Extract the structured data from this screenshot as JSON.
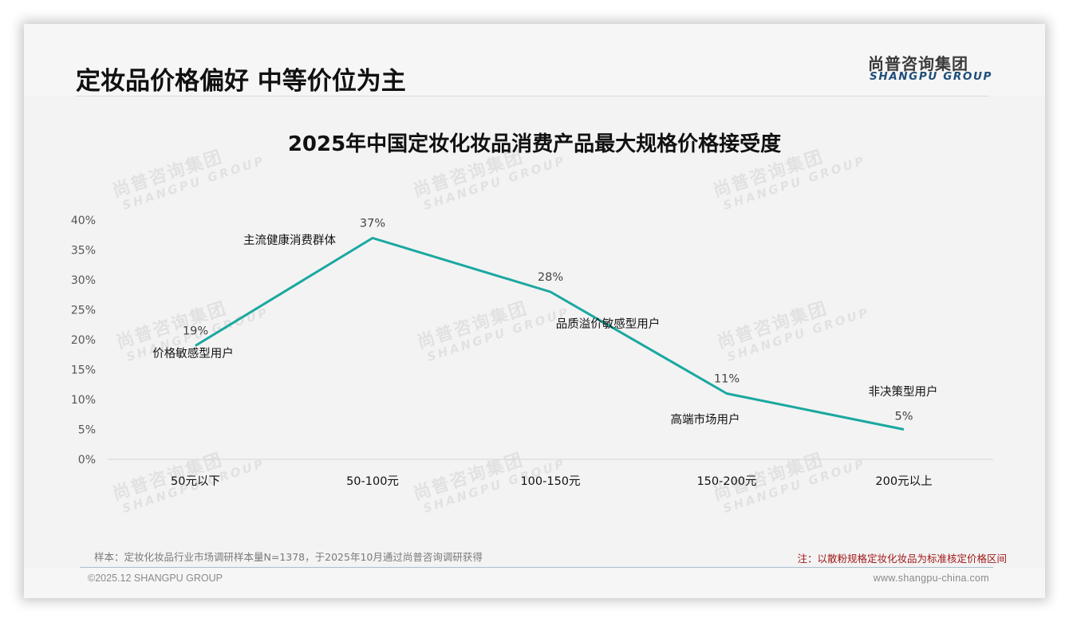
{
  "header": {
    "title": "定妆品价格偏好 中等价位为主",
    "logo_cn": "尚普咨询集团",
    "logo_en": "SHANGPU GROUP"
  },
  "watermark": {
    "cn": "尚普咨询集团",
    "en": "SHANGPU GROUP"
  },
  "chart_data": {
    "type": "line",
    "title": "2025年中国定妆化妆品消费产品最大规格价格接受度",
    "xlabel": "",
    "ylabel": "",
    "categories": [
      "50元以下",
      "50-100元",
      "100-150元",
      "150-200元",
      "200元以上"
    ],
    "series": [
      {
        "name": "价格接受度",
        "values": [
          19,
          37,
          28,
          11,
          5
        ],
        "color": "#1aa8a0"
      }
    ],
    "value_labels": [
      "19%",
      "37%",
      "28%",
      "11%",
      "5%"
    ],
    "annotations": [
      "价格敏感型用户",
      "主流健康消费群体",
      "品质溢价敏感型用户",
      "高端市场用户",
      "非决策型用户"
    ],
    "y_ticks": [
      "0%",
      "5%",
      "10%",
      "15%",
      "20%",
      "25%",
      "30%",
      "35%",
      "40%"
    ],
    "ylim": [
      0,
      40
    ],
    "grid": false,
    "legend": "none"
  },
  "notes": {
    "sample": "样本：定妆化妆品行业市场调研样本量N=1378，于2025年10月通过尚普咨询调研获得",
    "remark": "注：以散粉规格定妆化妆品为标准核定价格区间"
  },
  "footer": {
    "copyright": "©2025.12 SHANGPU GROUP",
    "website": "www.shangpu-china.com"
  }
}
